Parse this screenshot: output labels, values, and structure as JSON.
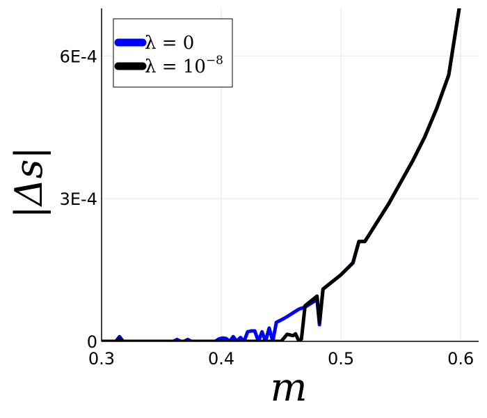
{
  "chart_data": {
    "type": "line",
    "title": "",
    "xlabel": "m",
    "ylabel": "|Δs|",
    "xlim": [
      0.3,
      0.615
    ],
    "ylim": [
      0,
      0.0007
    ],
    "xticks": [
      0.3,
      0.4,
      0.5,
      0.6
    ],
    "xtick_labels": [
      "0.3",
      "0.4",
      "0.5",
      "0.6"
    ],
    "yticks": [
      0,
      0.0003,
      0.0006
    ],
    "ytick_labels": [
      "0",
      "3E-4",
      "6E-4"
    ],
    "grid": true,
    "legend_position": "top-left",
    "series": [
      {
        "name": "λ = 0",
        "legend_main": "λ = 0",
        "legend_sup": "",
        "color": "#0000ff",
        "x": [
          0.3,
          0.312,
          0.315,
          0.318,
          0.33,
          0.36,
          0.363,
          0.366,
          0.369,
          0.372,
          0.375,
          0.395,
          0.398,
          0.401,
          0.404,
          0.407,
          0.41,
          0.413,
          0.416,
          0.419,
          0.422,
          0.425,
          0.428,
          0.431,
          0.434,
          0.437,
          0.44,
          0.443,
          0.446,
          0.45,
          0.455,
          0.46,
          0.465,
          0.47,
          0.475,
          0.48,
          0.482,
          0.485,
          0.49,
          0.5,
          0.51,
          0.515,
          0.52,
          0.53,
          0.54,
          0.55,
          0.56,
          0.57,
          0.58,
          0.59,
          0.6
        ],
        "y": [
          0,
          0,
          1e-05,
          0,
          0,
          0,
          4e-06,
          0,
          0,
          4e-06,
          0,
          0,
          5e-06,
          7e-06,
          6e-06,
          0,
          1e-05,
          0,
          8e-06,
          0,
          2e-05,
          2.2e-05,
          2.2e-05,
          0,
          2e-05,
          0,
          2.8e-05,
          0,
          4e-05,
          4.5e-05,
          5.2e-05,
          6e-05,
          6.8e-05,
          7.2e-05,
          8e-05,
          8.8e-05,
          3.5e-05,
          0.00011,
          0.00012,
          0.00014,
          0.000165,
          0.00021,
          0.00021,
          0.00025,
          0.00029,
          0.000335,
          0.00038,
          0.00043,
          0.00049,
          0.00056,
          0.00072
        ]
      },
      {
        "name": "λ = 10^−8",
        "legend_main": "λ = 10",
        "legend_sup": "−8",
        "color": "#000000",
        "x": [
          0.3,
          0.312,
          0.315,
          0.318,
          0.33,
          0.36,
          0.44,
          0.45,
          0.455,
          0.46,
          0.462,
          0.465,
          0.467,
          0.47,
          0.475,
          0.48,
          0.482,
          0.485,
          0.49,
          0.5,
          0.51,
          0.515,
          0.52,
          0.53,
          0.54,
          0.55,
          0.56,
          0.57,
          0.58,
          0.59,
          0.6
        ],
        "y": [
          0,
          0,
          5e-06,
          0,
          0,
          0,
          0,
          0,
          1.5e-05,
          1.2e-05,
          1.6e-05,
          0,
          5e-06,
          7.5e-05,
          8.5e-05,
          9.5e-05,
          4e-05,
          0.00011,
          0.00012,
          0.00014,
          0.000165,
          0.00021,
          0.00021,
          0.00025,
          0.00029,
          0.000335,
          0.00038,
          0.00043,
          0.00049,
          0.00056,
          0.00072
        ]
      }
    ]
  }
}
